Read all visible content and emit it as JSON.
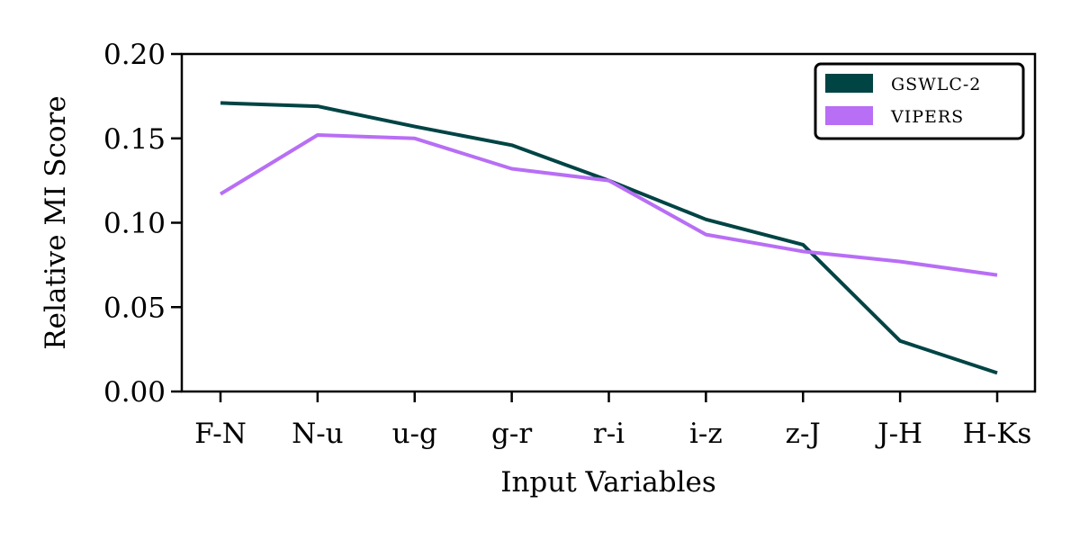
{
  "chart_data": {
    "type": "line",
    "xlabel": "Input Variables",
    "ylabel": "Relative MI Score",
    "categories": [
      "F-N",
      "N-u",
      "u-g",
      "g-r",
      "r-i",
      "i-z",
      "z-J",
      "J-H",
      "H-Ks"
    ],
    "ylim": [
      0,
      0.2
    ],
    "yticks": [
      "0.00",
      "0.05",
      "0.10",
      "0.15",
      "0.20"
    ],
    "grid": false,
    "legend_position": "top-right",
    "series": [
      {
        "name": "GSWLC-2",
        "color": "#004444",
        "values": [
          0.171,
          0.169,
          0.157,
          0.146,
          0.125,
          0.102,
          0.087,
          0.03,
          0.011
        ]
      },
      {
        "name": "VIPERS",
        "color": "#b86ef5",
        "values": [
          0.117,
          0.152,
          0.15,
          0.132,
          0.125,
          0.093,
          0.083,
          0.077,
          0.069
        ]
      }
    ]
  }
}
